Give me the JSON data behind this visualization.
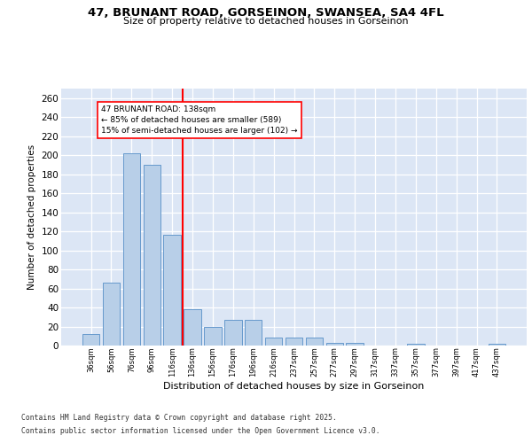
{
  "title_line1": "47, BRUNANT ROAD, GORSEINON, SWANSEA, SA4 4FL",
  "title_line2": "Size of property relative to detached houses in Gorseinon",
  "xlabel": "Distribution of detached houses by size in Gorseinon",
  "ylabel": "Number of detached properties",
  "footer_line1": "Contains HM Land Registry data © Crown copyright and database right 2025.",
  "footer_line2": "Contains public sector information licensed under the Open Government Licence v3.0.",
  "bar_labels": [
    "36sqm",
    "56sqm",
    "76sqm",
    "96sqm",
    "116sqm",
    "136sqm",
    "156sqm",
    "176sqm",
    "196sqm",
    "216sqm",
    "237sqm",
    "257sqm",
    "277sqm",
    "297sqm",
    "317sqm",
    "337sqm",
    "357sqm",
    "377sqm",
    "397sqm",
    "417sqm",
    "437sqm"
  ],
  "bar_values": [
    12,
    66,
    202,
    190,
    116,
    38,
    20,
    27,
    27,
    8,
    8,
    8,
    3,
    3,
    0,
    0,
    2,
    0,
    0,
    0,
    2
  ],
  "bar_color": "#b8cfe8",
  "bar_edge_color": "#6699cc",
  "background_color": "#dce6f5",
  "vline_x_index": 5,
  "vline_color": "red",
  "annotation_text": "47 BRUNANT ROAD: 138sqm\n← 85% of detached houses are smaller (589)\n15% of semi-detached houses are larger (102) →",
  "ylim": [
    0,
    270
  ],
  "yticks": [
    0,
    20,
    40,
    60,
    80,
    100,
    120,
    140,
    160,
    180,
    200,
    220,
    240,
    260
  ]
}
